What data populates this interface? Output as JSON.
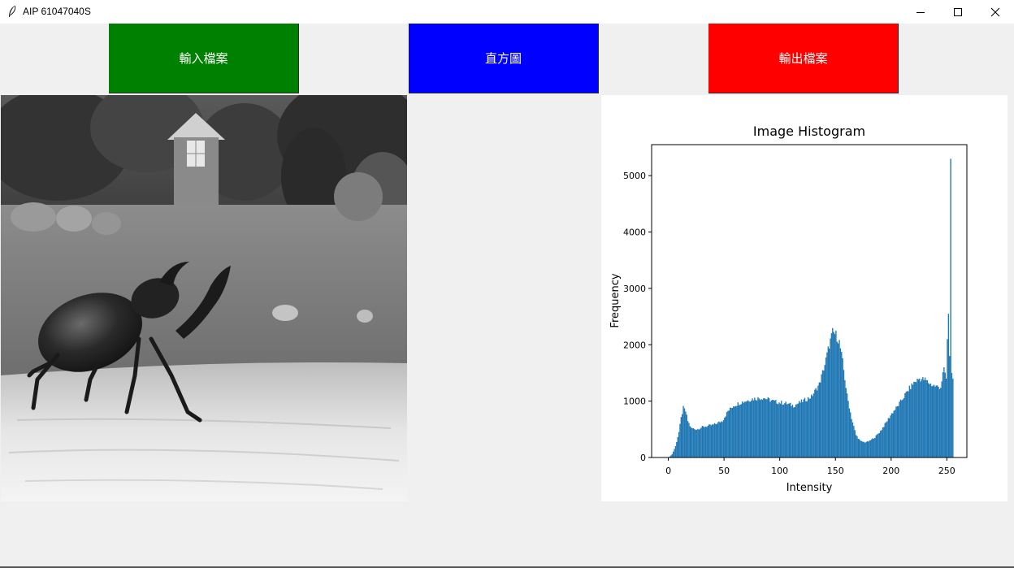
{
  "window": {
    "title": "AIP 61047040S",
    "icon": "feather-icon",
    "controls": [
      "minimize-icon",
      "maximize-icon",
      "close-icon"
    ]
  },
  "toolbar": {
    "input_label": "輸入檔案",
    "histogram_label": "直方圖",
    "output_label": "輸出檔案",
    "colors": {
      "input": "#008000",
      "histogram": "#0000ff",
      "output": "#ff0000"
    }
  },
  "image_panel": {
    "content": "grayscale-photo-beetle"
  },
  "chart_data": {
    "type": "bar",
    "title": "Image Histogram",
    "xlabel": "Intensity",
    "ylabel": "Frequency",
    "xlim": [
      -15,
      268
    ],
    "ylim": [
      0,
      5550
    ],
    "xticks": [
      0,
      50,
      100,
      150,
      200,
      250
    ],
    "yticks": [
      0,
      1000,
      2000,
      3000,
      4000,
      5000
    ],
    "bar_color": "#1f77b4",
    "keypoints": [
      [
        0,
        0
      ],
      [
        3,
        60
      ],
      [
        6,
        200
      ],
      [
        9,
        450
      ],
      [
        11,
        700
      ],
      [
        13,
        880
      ],
      [
        15,
        820
      ],
      [
        17,
        650
      ],
      [
        20,
        520
      ],
      [
        25,
        500
      ],
      [
        30,
        540
      ],
      [
        40,
        580
      ],
      [
        48,
        650
      ],
      [
        53,
        820
      ],
      [
        58,
        920
      ],
      [
        65,
        980
      ],
      [
        75,
        1040
      ],
      [
        85,
        1060
      ],
      [
        95,
        990
      ],
      [
        105,
        960
      ],
      [
        112,
        920
      ],
      [
        120,
        1000
      ],
      [
        128,
        1080
      ],
      [
        135,
        1300
      ],
      [
        140,
        1650
      ],
      [
        144,
        2000
      ],
      [
        147,
        2220
      ],
      [
        150,
        2180
      ],
      [
        153,
        2050
      ],
      [
        156,
        1700
      ],
      [
        160,
        1100
      ],
      [
        164,
        700
      ],
      [
        168,
        400
      ],
      [
        172,
        290
      ],
      [
        176,
        270
      ],
      [
        180,
        290
      ],
      [
        185,
        360
      ],
      [
        190,
        470
      ],
      [
        195,
        620
      ],
      [
        200,
        780
      ],
      [
        205,
        900
      ],
      [
        210,
        1050
      ],
      [
        215,
        1200
      ],
      [
        220,
        1330
      ],
      [
        225,
        1400
      ],
      [
        230,
        1380
      ],
      [
        235,
        1300
      ],
      [
        240,
        1260
      ],
      [
        244,
        1250
      ],
      [
        247,
        1600
      ],
      [
        249,
        1400
      ],
      [
        250,
        2100
      ],
      [
        251,
        2550
      ],
      [
        252,
        1800
      ],
      [
        253,
        5300
      ],
      [
        254,
        1500
      ],
      [
        255,
        1400
      ]
    ]
  }
}
